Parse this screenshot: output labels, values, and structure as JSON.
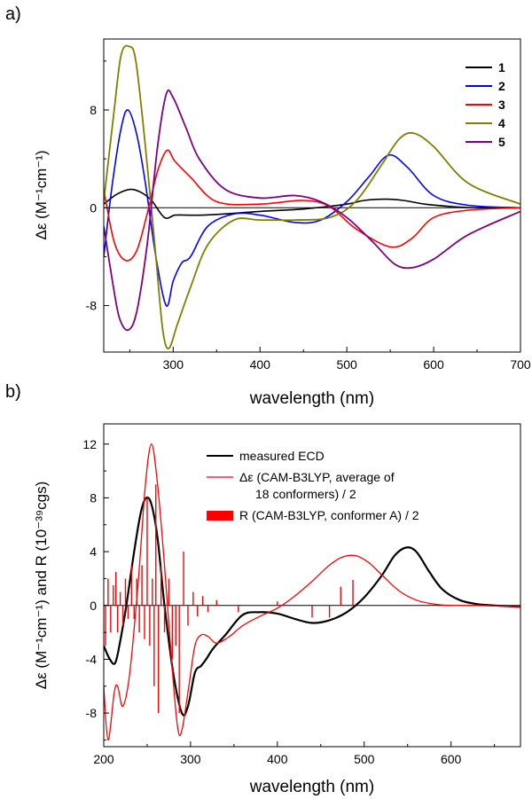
{
  "chart_data": [
    {
      "panel_label": "a)",
      "type": "line",
      "xlabel": "wavelength (nm)",
      "ylabel": "Δε (M⁻¹cm⁻¹)",
      "xlim": [
        220,
        700
      ],
      "ylim": [
        -11.8,
        13.8
      ],
      "xticks": [
        300,
        400,
        500,
        600,
        700
      ],
      "yticks": [
        -8,
        0,
        8
      ],
      "zero_line": true,
      "grid": false,
      "legend_position": "top-right",
      "series": [
        {
          "name": "1",
          "color": "#000000",
          "x": [
            220,
            235,
            250,
            262,
            275,
            290,
            302,
            315,
            335,
            360,
            400,
            450,
            500,
            520,
            545,
            565,
            590,
            620,
            650,
            700
          ],
          "y": [
            0.3,
            1.1,
            1.5,
            1.3,
            0.6,
            -0.8,
            -0.6,
            -0.6,
            -0.6,
            -0.5,
            -0.3,
            -0.1,
            0.3,
            0.6,
            0.7,
            0.6,
            0.3,
            0.1,
            0.0,
            0.0
          ]
        },
        {
          "name": "2",
          "color": "#0000ff",
          "x": [
            220,
            230,
            240,
            248,
            258,
            268,
            280,
            292,
            300,
            310,
            320,
            340,
            370,
            400,
            440,
            470,
            500,
            525,
            548,
            570,
            600,
            640,
            700
          ],
          "y": [
            -4,
            2,
            6.5,
            8,
            6,
            2,
            -4,
            -8,
            -6,
            -4.5,
            -4,
            -1.5,
            -0.5,
            -0.6,
            -1.2,
            -1,
            0.5,
            2.5,
            4.3,
            3.3,
            1,
            0.2,
            0
          ]
        },
        {
          "name": "3",
          "color": "#ff0000",
          "x": [
            220,
            232,
            245,
            258,
            270,
            282,
            293,
            302,
            320,
            350,
            400,
            450,
            480,
            510,
            550,
            575,
            600,
            640,
            700
          ],
          "y": [
            1.5,
            -2.8,
            -4.3,
            -3.5,
            -0.5,
            3,
            4.7,
            3.8,
            2.5,
            0.5,
            0.3,
            0.6,
            0.1,
            -1.7,
            -3.2,
            -2.5,
            -0.8,
            -0.2,
            0
          ]
        },
        {
          "name": "4",
          "color": "#808000",
          "x": [
            220,
            232,
            240,
            249,
            257,
            268,
            280,
            288,
            295,
            305,
            320,
            340,
            370,
            400,
            440,
            480,
            510,
            540,
            560,
            577,
            600,
            640,
            700
          ],
          "y": [
            0.5,
            8,
            12.5,
            13.2,
            12,
            5,
            -4,
            -10,
            -11.5,
            -9.5,
            -6.5,
            -3,
            -1,
            -1,
            -1,
            -0.8,
            0.5,
            3.5,
            5.6,
            6.1,
            5,
            2,
            0.3
          ]
        },
        {
          "name": "5",
          "color": "#800080",
          "x": [
            220,
            230,
            238,
            248,
            258,
            270,
            282,
            292,
            300,
            315,
            330,
            360,
            400,
            440,
            470,
            500,
            530,
            555,
            575,
            600,
            640,
            700
          ],
          "y": [
            -1.5,
            -6,
            -9,
            -10,
            -8.5,
            -3,
            5,
            9.3,
            9,
            6.5,
            4,
            1.5,
            0.8,
            1,
            0.5,
            -0.8,
            -2.8,
            -4.6,
            -4.9,
            -4.2,
            -2.2,
            -0.3
          ]
        }
      ]
    },
    {
      "panel_label": "b)",
      "type": "line",
      "xlabel": "wavelength (nm)",
      "ylabel": "Δε (M⁻¹cm⁻¹) and R (10⁻³⁹cgs)",
      "xlim": [
        200,
        680
      ],
      "ylim": [
        -10.5,
        13.5
      ],
      "xticks": [
        200,
        300,
        400,
        500,
        600
      ],
      "yticks": [
        -8,
        -4,
        0,
        4,
        8,
        12
      ],
      "zero_line": true,
      "grid": false,
      "legend_position": "top-right",
      "legend": {
        "measured": "measured ECD",
        "calc_line1": "Δε (CAM-B3LYP, average of",
        "calc_line2": "18 conformers) / 2",
        "bars": "R (CAM-B3LYP, conformer A) / 2"
      },
      "series": [
        {
          "name": "measured ECD",
          "color": "#000000",
          "x": [
            200,
            207,
            213,
            218,
            226,
            235,
            243,
            249,
            255,
            262,
            270,
            280,
            290,
            297,
            305,
            312,
            318,
            326,
            340,
            360,
            380,
            400,
            420,
            440,
            460,
            480,
            500,
            520,
            535,
            548,
            560,
            575,
            590,
            610,
            630,
            650,
            680
          ],
          "y": [
            -3,
            -4,
            -4.3,
            -3,
            0,
            4,
            7,
            8,
            7.5,
            5,
            0,
            -5,
            -8,
            -7.5,
            -5,
            -4.5,
            -4,
            -3.2,
            -2.2,
            -0.7,
            -0.5,
            -0.6,
            -1,
            -1.3,
            -1.1,
            -0.5,
            0.6,
            2.2,
            3.7,
            4.3,
            4,
            2.5,
            1.2,
            0.4,
            0.1,
            0,
            -0.1
          ]
        },
        {
          "name": "Δε (CAM-B3LYP, average of 18 conformers) / 2",
          "color": "#ff0000",
          "x": [
            200,
            205,
            212,
            216,
            222,
            230,
            240,
            248,
            255,
            262,
            270,
            278,
            285,
            290,
            298,
            305,
            312,
            320,
            330,
            345,
            360,
            380,
            400,
            420,
            440,
            460,
            475,
            490,
            505,
            520,
            540,
            560,
            580,
            600,
            630,
            680
          ],
          "y": [
            -6,
            -10,
            -6.5,
            -6,
            -7.5,
            -5,
            2,
            9,
            12,
            9,
            3,
            -4,
            -9,
            -9.3,
            -6,
            -3,
            -2.2,
            -2.3,
            -2.8,
            -2.3,
            -1.5,
            -0.8,
            -0.2,
            0.7,
            1.8,
            3,
            3.6,
            3.7,
            3.2,
            2.3,
            1.1,
            0.4,
            0.1,
            0,
            0,
            -0.1
          ]
        },
        {
          "name": "R (CAM-B3LYP, conformer A) / 2",
          "color": "#ff0000",
          "kind": "sticks",
          "x": [
            202,
            205,
            208,
            211,
            214,
            216,
            219,
            222,
            225,
            228,
            232,
            235,
            238,
            241,
            244,
            247,
            250,
            253,
            256,
            258,
            260,
            263,
            266,
            270,
            275,
            279,
            283,
            287,
            292,
            297,
            303,
            308,
            314,
            320,
            330,
            355,
            400,
            440,
            460,
            473,
            487
          ],
          "y": [
            -3,
            2,
            -2,
            1.5,
            2.5,
            -2,
            1,
            -1.5,
            2,
            -1,
            3,
            -1,
            2,
            -2,
            3,
            -2.5,
            8,
            -3,
            2,
            -6,
            9,
            -8,
            3,
            -2,
            2,
            -4,
            -3,
            -8,
            4,
            -1.5,
            1,
            -0.8,
            0.7,
            -0.5,
            0.4,
            -0.5,
            0.3,
            -0.9,
            -0.9,
            1.4,
            1.9
          ]
        }
      ]
    }
  ]
}
